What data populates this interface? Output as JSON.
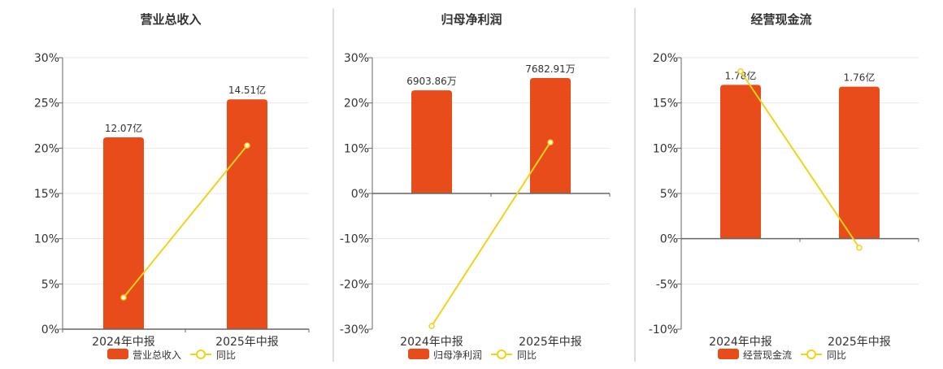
{
  "colors": {
    "bar": "#e84c1a",
    "line": "#f2d21b",
    "axis": "#666666",
    "grid": "#e8e8e8",
    "divider": "#bbbbbb",
    "text": "#333333"
  },
  "legend_line_label": "同比",
  "chart_data": [
    {
      "type": "bar",
      "title": "营业总收入",
      "categories": [
        "2024年中报",
        "2025年中报"
      ],
      "series": [
        {
          "name": "营业总收入",
          "type": "bar",
          "values": [
            21.2,
            25.4
          ],
          "labels": [
            "12.07亿",
            "14.51亿"
          ]
        },
        {
          "name": "同比",
          "type": "line",
          "values": [
            3.5,
            20.3
          ]
        }
      ],
      "ylim": [
        0,
        30
      ],
      "yticks": [
        0,
        5,
        10,
        15,
        20,
        25,
        30
      ],
      "ytick_labels": [
        "0%",
        "5%",
        "10%",
        "15%",
        "20%",
        "25%",
        "30%"
      ],
      "legend": "bottom"
    },
    {
      "type": "bar",
      "title": "归母净利润",
      "categories": [
        "2024年中报",
        "2025年中报"
      ],
      "series": [
        {
          "name": "归母净利润",
          "type": "bar",
          "values": [
            22.8,
            25.5
          ],
          "labels": [
            "6903.86万",
            "7682.91万"
          ]
        },
        {
          "name": "同比",
          "type": "line",
          "values": [
            -29.3,
            11.3
          ]
        }
      ],
      "ylim": [
        -30,
        30
      ],
      "yticks": [
        -30,
        -20,
        -10,
        0,
        10,
        20,
        30
      ],
      "ytick_labels": [
        "-30%",
        "-20%",
        "-10%",
        "0%",
        "10%",
        "20%",
        "30%"
      ],
      "legend": "bottom"
    },
    {
      "type": "bar",
      "title": "经营现金流",
      "categories": [
        "2024年中报",
        "2025年中报"
      ],
      "series": [
        {
          "name": "经营现金流",
          "type": "bar",
          "values": [
            17.0,
            16.8
          ],
          "labels": [
            "1.78亿",
            "1.76亿"
          ]
        },
        {
          "name": "同比",
          "type": "line",
          "values": [
            18.5,
            -1.0
          ]
        }
      ],
      "ylim": [
        -10,
        20
      ],
      "yticks": [
        -10,
        -5,
        0,
        5,
        10,
        15,
        20
      ],
      "ytick_labels": [
        "-10%",
        "-5%",
        "0%",
        "5%",
        "10%",
        "15%",
        "20%"
      ],
      "legend": "bottom"
    }
  ]
}
